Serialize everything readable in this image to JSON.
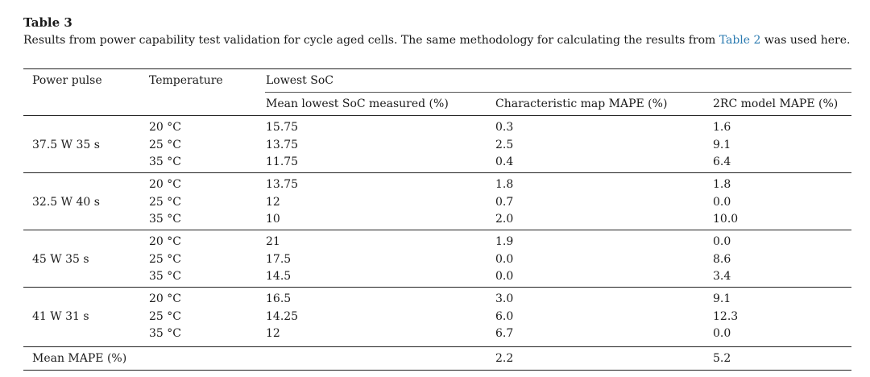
{
  "title": "Table 3",
  "caption": {
    "before": "Results from power capability test validation for cycle aged cells. The same methodology for calculating the results from ",
    "ref": "Table 2",
    "after": " was used here."
  },
  "headers": {
    "power_pulse": "Power pulse",
    "temperature": "Temperature",
    "lowest_soc": "Lowest SoC",
    "mean_lowest": "Mean lowest SoC measured (%)",
    "char_map": "Characteristic map MAPE (%)",
    "rc_model": "2RC model MAPE (%)"
  },
  "groups": [
    {
      "pulse": "37.5 W 35 s",
      "rows": [
        {
          "temp": "20 °C",
          "mean": "15.75",
          "char": "0.3",
          "rc": "1.6"
        },
        {
          "temp": "25 °C",
          "mean": "13.75",
          "char": "2.5",
          "rc": "9.1"
        },
        {
          "temp": "35 °C",
          "mean": "11.75",
          "char": "0.4",
          "rc": "6.4"
        }
      ]
    },
    {
      "pulse": "32.5 W 40 s",
      "rows": [
        {
          "temp": "20 °C",
          "mean": "13.75",
          "char": "1.8",
          "rc": "1.8"
        },
        {
          "temp": "25 °C",
          "mean": "12",
          "char": "0.7",
          "rc": "0.0"
        },
        {
          "temp": "35 °C",
          "mean": "10",
          "char": "2.0",
          "rc": "10.0"
        }
      ]
    },
    {
      "pulse": "45 W 35 s",
      "rows": [
        {
          "temp": "20 °C",
          "mean": "21",
          "char": "1.9",
          "rc": "0.0"
        },
        {
          "temp": "25 °C",
          "mean": "17.5",
          "char": "0.0",
          "rc": "8.6"
        },
        {
          "temp": "35 °C",
          "mean": "14.5",
          "char": "0.0",
          "rc": "3.4"
        }
      ]
    },
    {
      "pulse": "41 W 31 s",
      "rows": [
        {
          "temp": "20 °C",
          "mean": "16.5",
          "char": "3.0",
          "rc": "9.1"
        },
        {
          "temp": "25 °C",
          "mean": "14.25",
          "char": "6.0",
          "rc": "12.3"
        },
        {
          "temp": "35 °C",
          "mean": "12",
          "char": "6.7",
          "rc": "0.0"
        }
      ]
    }
  ],
  "footer": {
    "label": "Mean MAPE (%)",
    "char": "2.2",
    "rc": "5.2"
  }
}
